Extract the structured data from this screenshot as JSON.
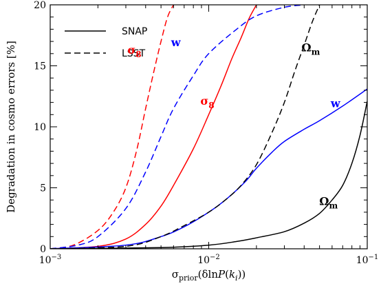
{
  "chart_data": {
    "type": "line",
    "xlabel": "σ_prior(δlnP(k_i))",
    "ylabel": "Degradation in cosmo errors [%]",
    "xscale": "log",
    "xlim": [
      0.001,
      0.1
    ],
    "ylim": [
      0,
      20
    ],
    "x_ticks": [
      {
        "value": 0.001,
        "base": "10",
        "exp": "−3"
      },
      {
        "value": 0.01,
        "base": "10",
        "exp": "−2"
      },
      {
        "value": 0.1,
        "base": "10",
        "exp": "−1"
      }
    ],
    "y_ticks": [
      {
        "value": 0,
        "label": "0"
      },
      {
        "value": 5,
        "label": "5"
      },
      {
        "value": 10,
        "label": "10"
      },
      {
        "value": 15,
        "label": "15"
      },
      {
        "value": 20,
        "label": "20"
      }
    ],
    "legend": {
      "placement": "top-left",
      "entries": [
        {
          "label": "SNAP",
          "style": "solid"
        },
        {
          "label": "LSST",
          "style": "dashed"
        }
      ]
    },
    "colors": {
      "sigma8": "#ff0000",
      "w": "#0000ff",
      "omega_m": "#000000"
    },
    "series": [
      {
        "survey": "LSST",
        "param": "sigma8",
        "color": "#ff0000",
        "style": "dashed",
        "points": [
          [
            0.001,
            0
          ],
          [
            0.0014,
            0.3
          ],
          [
            0.002,
            1.5
          ],
          [
            0.0025,
            3.0
          ],
          [
            0.003,
            5.0
          ],
          [
            0.0035,
            8.0
          ],
          [
            0.004,
            11.5
          ],
          [
            0.0045,
            14.5
          ],
          [
            0.005,
            17.0
          ],
          [
            0.0055,
            19.0
          ],
          [
            0.006,
            20.0
          ]
        ]
      },
      {
        "survey": "SNAP",
        "param": "sigma8",
        "color": "#ff0000",
        "style": "solid",
        "points": [
          [
            0.001,
            0
          ],
          [
            0.002,
            0.2
          ],
          [
            0.003,
            0.8
          ],
          [
            0.004,
            2.0
          ],
          [
            0.005,
            3.5
          ],
          [
            0.006,
            5.2
          ],
          [
            0.008,
            8.2
          ],
          [
            0.01,
            11.0
          ],
          [
            0.012,
            13.4
          ],
          [
            0.014,
            15.6
          ],
          [
            0.016,
            17.3
          ],
          [
            0.018,
            18.9
          ],
          [
            0.02,
            20.0
          ]
        ]
      },
      {
        "survey": "LSST",
        "param": "w",
        "color": "#0000ff",
        "style": "dashed",
        "points": [
          [
            0.001,
            0
          ],
          [
            0.0015,
            0.3
          ],
          [
            0.002,
            1.0
          ],
          [
            0.003,
            3.3
          ],
          [
            0.004,
            6.3
          ],
          [
            0.005,
            9.2
          ],
          [
            0.006,
            11.5
          ],
          [
            0.008,
            14.2
          ],
          [
            0.01,
            16.0
          ],
          [
            0.015,
            18.0
          ],
          [
            0.02,
            19.1
          ],
          [
            0.03,
            19.8
          ],
          [
            0.04,
            20.0
          ]
        ]
      },
      {
        "survey": "SNAP",
        "param": "w",
        "color": "#0000ff",
        "style": "solid",
        "points": [
          [
            0.001,
            0
          ],
          [
            0.003,
            0.3
          ],
          [
            0.005,
            1.0
          ],
          [
            0.007,
            1.8
          ],
          [
            0.01,
            3.0
          ],
          [
            0.013,
            4.1
          ],
          [
            0.017,
            5.5
          ],
          [
            0.02,
            6.6
          ],
          [
            0.025,
            7.9
          ],
          [
            0.03,
            8.8
          ],
          [
            0.04,
            9.8
          ],
          [
            0.05,
            10.5
          ],
          [
            0.07,
            11.7
          ],
          [
            0.1,
            13.1
          ]
        ]
      },
      {
        "survey": "LSST",
        "param": "omega_m",
        "color": "#000000",
        "style": "dashed",
        "points": [
          [
            0.001,
            0
          ],
          [
            0.003,
            0.2
          ],
          [
            0.005,
            1.0
          ],
          [
            0.007,
            1.9
          ],
          [
            0.01,
            3.0
          ],
          [
            0.013,
            4.1
          ],
          [
            0.016,
            5.2
          ],
          [
            0.02,
            6.9
          ],
          [
            0.025,
            9.5
          ],
          [
            0.03,
            12.0
          ],
          [
            0.035,
            14.6
          ],
          [
            0.04,
            16.7
          ],
          [
            0.045,
            18.6
          ],
          [
            0.05,
            20.0
          ]
        ]
      },
      {
        "survey": "SNAP",
        "param": "omega_m",
        "color": "#000000",
        "style": "solid",
        "points": [
          [
            0.001,
            0
          ],
          [
            0.005,
            0.1
          ],
          [
            0.01,
            0.3
          ],
          [
            0.015,
            0.6
          ],
          [
            0.02,
            0.9
          ],
          [
            0.03,
            1.4
          ],
          [
            0.04,
            2.1
          ],
          [
            0.05,
            2.9
          ],
          [
            0.06,
            4.0
          ],
          [
            0.07,
            5.2
          ],
          [
            0.08,
            7.0
          ],
          [
            0.09,
            9.3
          ],
          [
            0.1,
            12.1
          ]
        ]
      }
    ],
    "annotations": [
      {
        "id": "sigma8-lsst",
        "text": "σ",
        "sub": "8",
        "color": "#ff0000",
        "x": 0.0034,
        "y": 16.0
      },
      {
        "id": "w-lsst",
        "text": "w",
        "sub": "",
        "color": "#0000ff",
        "x": 0.0062,
        "y": 16.6
      },
      {
        "id": "omega-m-lsst",
        "text": "Ω",
        "sub": "m",
        "color": "#000000",
        "x": 0.044,
        "y": 16.2
      },
      {
        "id": "sigma8-snap",
        "text": "σ",
        "sub": "8",
        "color": "#ff0000",
        "x": 0.0098,
        "y": 11.8
      },
      {
        "id": "w-snap",
        "text": "w",
        "sub": "",
        "color": "#0000ff",
        "x": 0.063,
        "y": 11.6
      },
      {
        "id": "omega-m-snap",
        "text": "Ω",
        "sub": "m",
        "color": "#000000",
        "x": 0.057,
        "y": 3.6
      }
    ]
  }
}
